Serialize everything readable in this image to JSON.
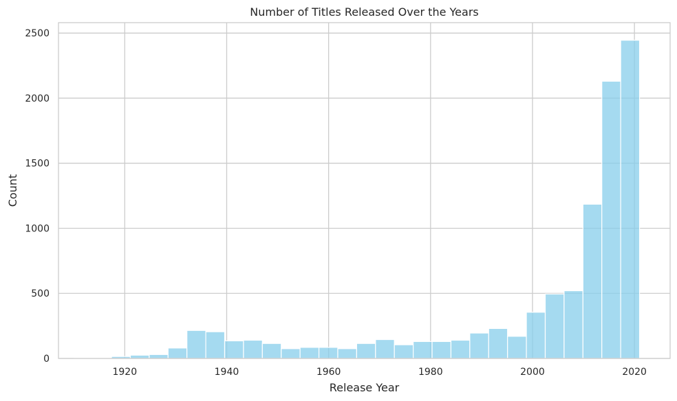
{
  "chart_data": {
    "type": "bar",
    "title": "Number of Titles Released Over the Years",
    "xlabel": "Release Year",
    "ylabel": "Count",
    "xlim": [
      1907,
      2027
    ],
    "ylim": [
      0,
      2580
    ],
    "xticks": [
      1920,
      1940,
      1960,
      1980,
      2000,
      2020
    ],
    "yticks": [
      0,
      500,
      1000,
      1500,
      2000,
      2500
    ],
    "grid": true,
    "bin_edges": [
      1910,
      1913.7,
      1917.4,
      1921.1,
      1924.8,
      1928.5,
      1932.2,
      1935.9,
      1939.6,
      1943.3,
      1947,
      1950.7,
      1954.4,
      1958.1,
      1961.8,
      1965.5,
      1969.2,
      1972.9,
      1976.6,
      1980.3,
      1984,
      1987.7,
      1991.4,
      1995.1,
      1998.8,
      2002.5,
      2006.2,
      2009.9,
      2013.6,
      2017.3,
      2021
    ],
    "values": [
      2,
      3,
      15,
      25,
      30,
      80,
      215,
      205,
      135,
      140,
      115,
      75,
      85,
      85,
      75,
      115,
      145,
      105,
      130,
      130,
      140,
      195,
      230,
      170,
      355,
      495,
      520,
      1185,
      2130,
      2445
    ],
    "color": "#87ceeb"
  }
}
